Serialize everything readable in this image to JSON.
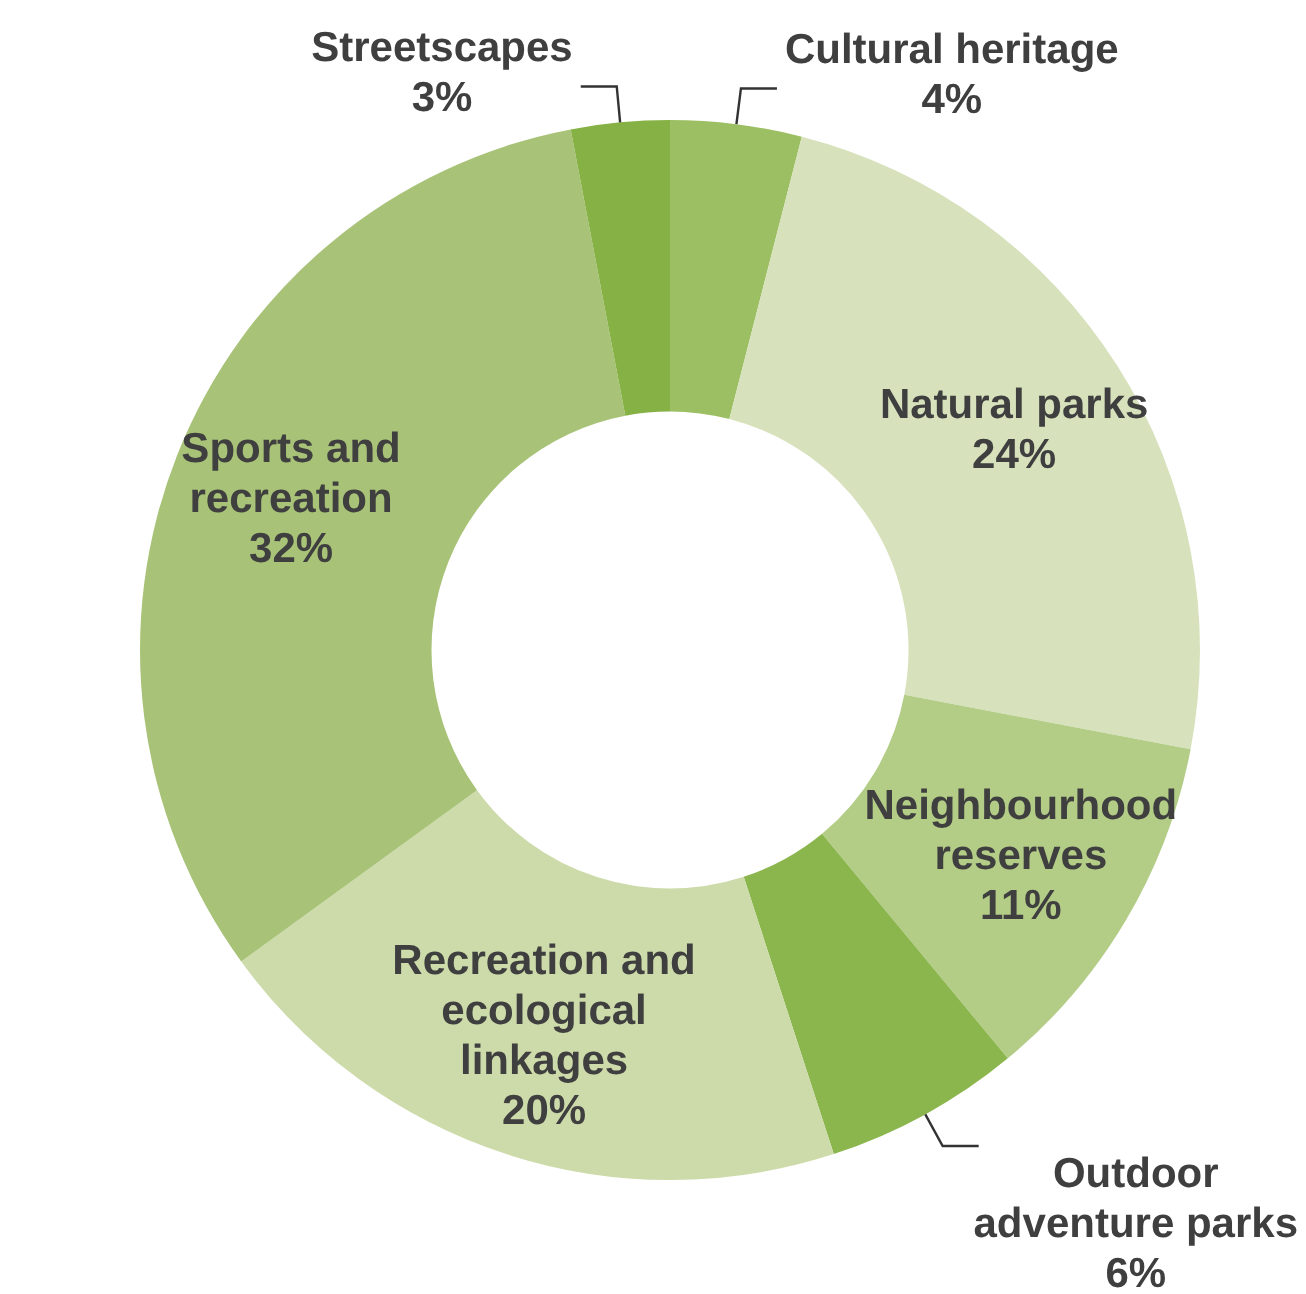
{
  "chart_data": {
    "type": "donut",
    "categories": [
      "Cultural heritage",
      "Natural parks",
      "Neighbourhood reserves",
      "Outdoor adventure parks",
      "Recreation and ecological linkages",
      "Sports and recreation",
      "Streetscapes"
    ],
    "values": [
      4,
      24,
      11,
      6,
      20,
      32,
      3
    ],
    "colors": [
      "#9dbf63",
      "#d7e2bc",
      "#b3cd87",
      "#8bb54d",
      "#cddbaa",
      "#a8c378",
      "#86b145"
    ],
    "value_labels": [
      "4%",
      "24%",
      "11%",
      "6%",
      "20%",
      "32%",
      "3%"
    ],
    "legend": false
  }
}
